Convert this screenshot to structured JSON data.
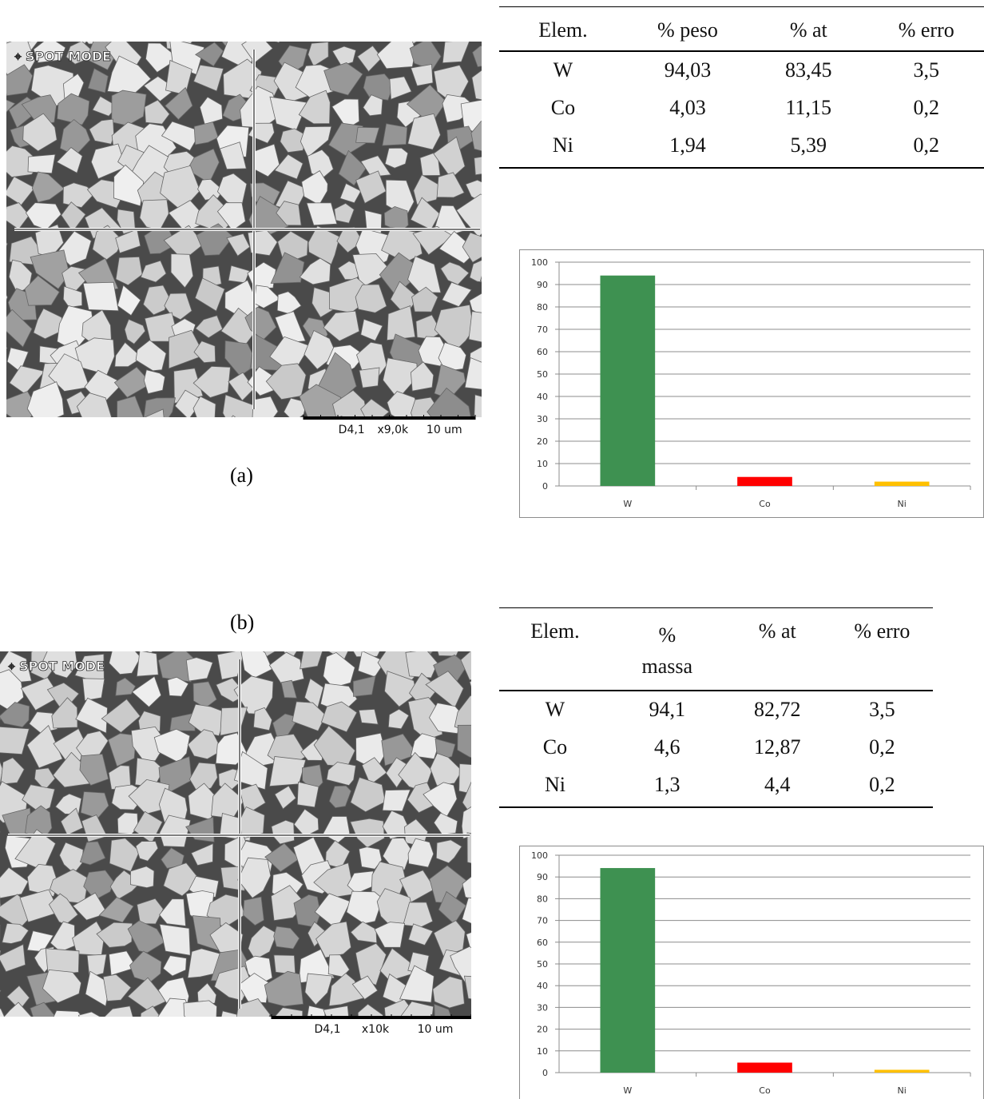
{
  "panels": [
    {
      "label": "(a)",
      "image": {
        "mode": "SPOT MODE",
        "scale_text": [
          "D4,1",
          "x9,0k",
          "10 um"
        ]
      },
      "table": {
        "header": [
          "Elem.",
          "% peso",
          "% at",
          "% erro"
        ],
        "rows": [
          [
            "W",
            "94,03",
            "83,45",
            "3,5"
          ],
          [
            "Co",
            "4,03",
            "11,15",
            "0,2"
          ],
          [
            "Ni",
            "1,94",
            "5,39",
            "0,2"
          ]
        ]
      }
    },
    {
      "label": "(b)",
      "image": {
        "mode": "SPOT MODE",
        "scale_text": [
          "D4,1",
          "x10k",
          "10 um"
        ]
      },
      "table": {
        "header": [
          "Elem.",
          "% massa",
          "% at",
          "% erro"
        ],
        "rows": [
          [
            "W",
            "94,1",
            "82,72",
            "3,5"
          ],
          [
            "Co",
            "4,6",
            "12,87",
            "0,2"
          ],
          [
            "Ni",
            "1,3",
            "4,4",
            "0,2"
          ]
        ]
      }
    }
  ],
  "chart_data": [
    {
      "type": "bar",
      "categories": [
        "W",
        "Co",
        "Ni"
      ],
      "values": [
        94.03,
        4.03,
        1.94
      ],
      "colors": [
        "#3e9151",
        "#ff0000",
        "#ffc000"
      ],
      "ylim": [
        0,
        100
      ],
      "yticks": [
        0,
        10,
        20,
        30,
        40,
        50,
        60,
        70,
        80,
        90,
        100
      ],
      "grid": true
    },
    {
      "type": "bar",
      "categories": [
        "W",
        "Co",
        "Ni"
      ],
      "values": [
        94.1,
        4.6,
        1.3
      ],
      "colors": [
        "#3e9151",
        "#ff0000",
        "#ffc000"
      ],
      "ylim": [
        0,
        100
      ],
      "yticks": [
        0,
        10,
        20,
        30,
        40,
        50,
        60,
        70,
        80,
        90,
        100
      ],
      "grid": true
    }
  ]
}
